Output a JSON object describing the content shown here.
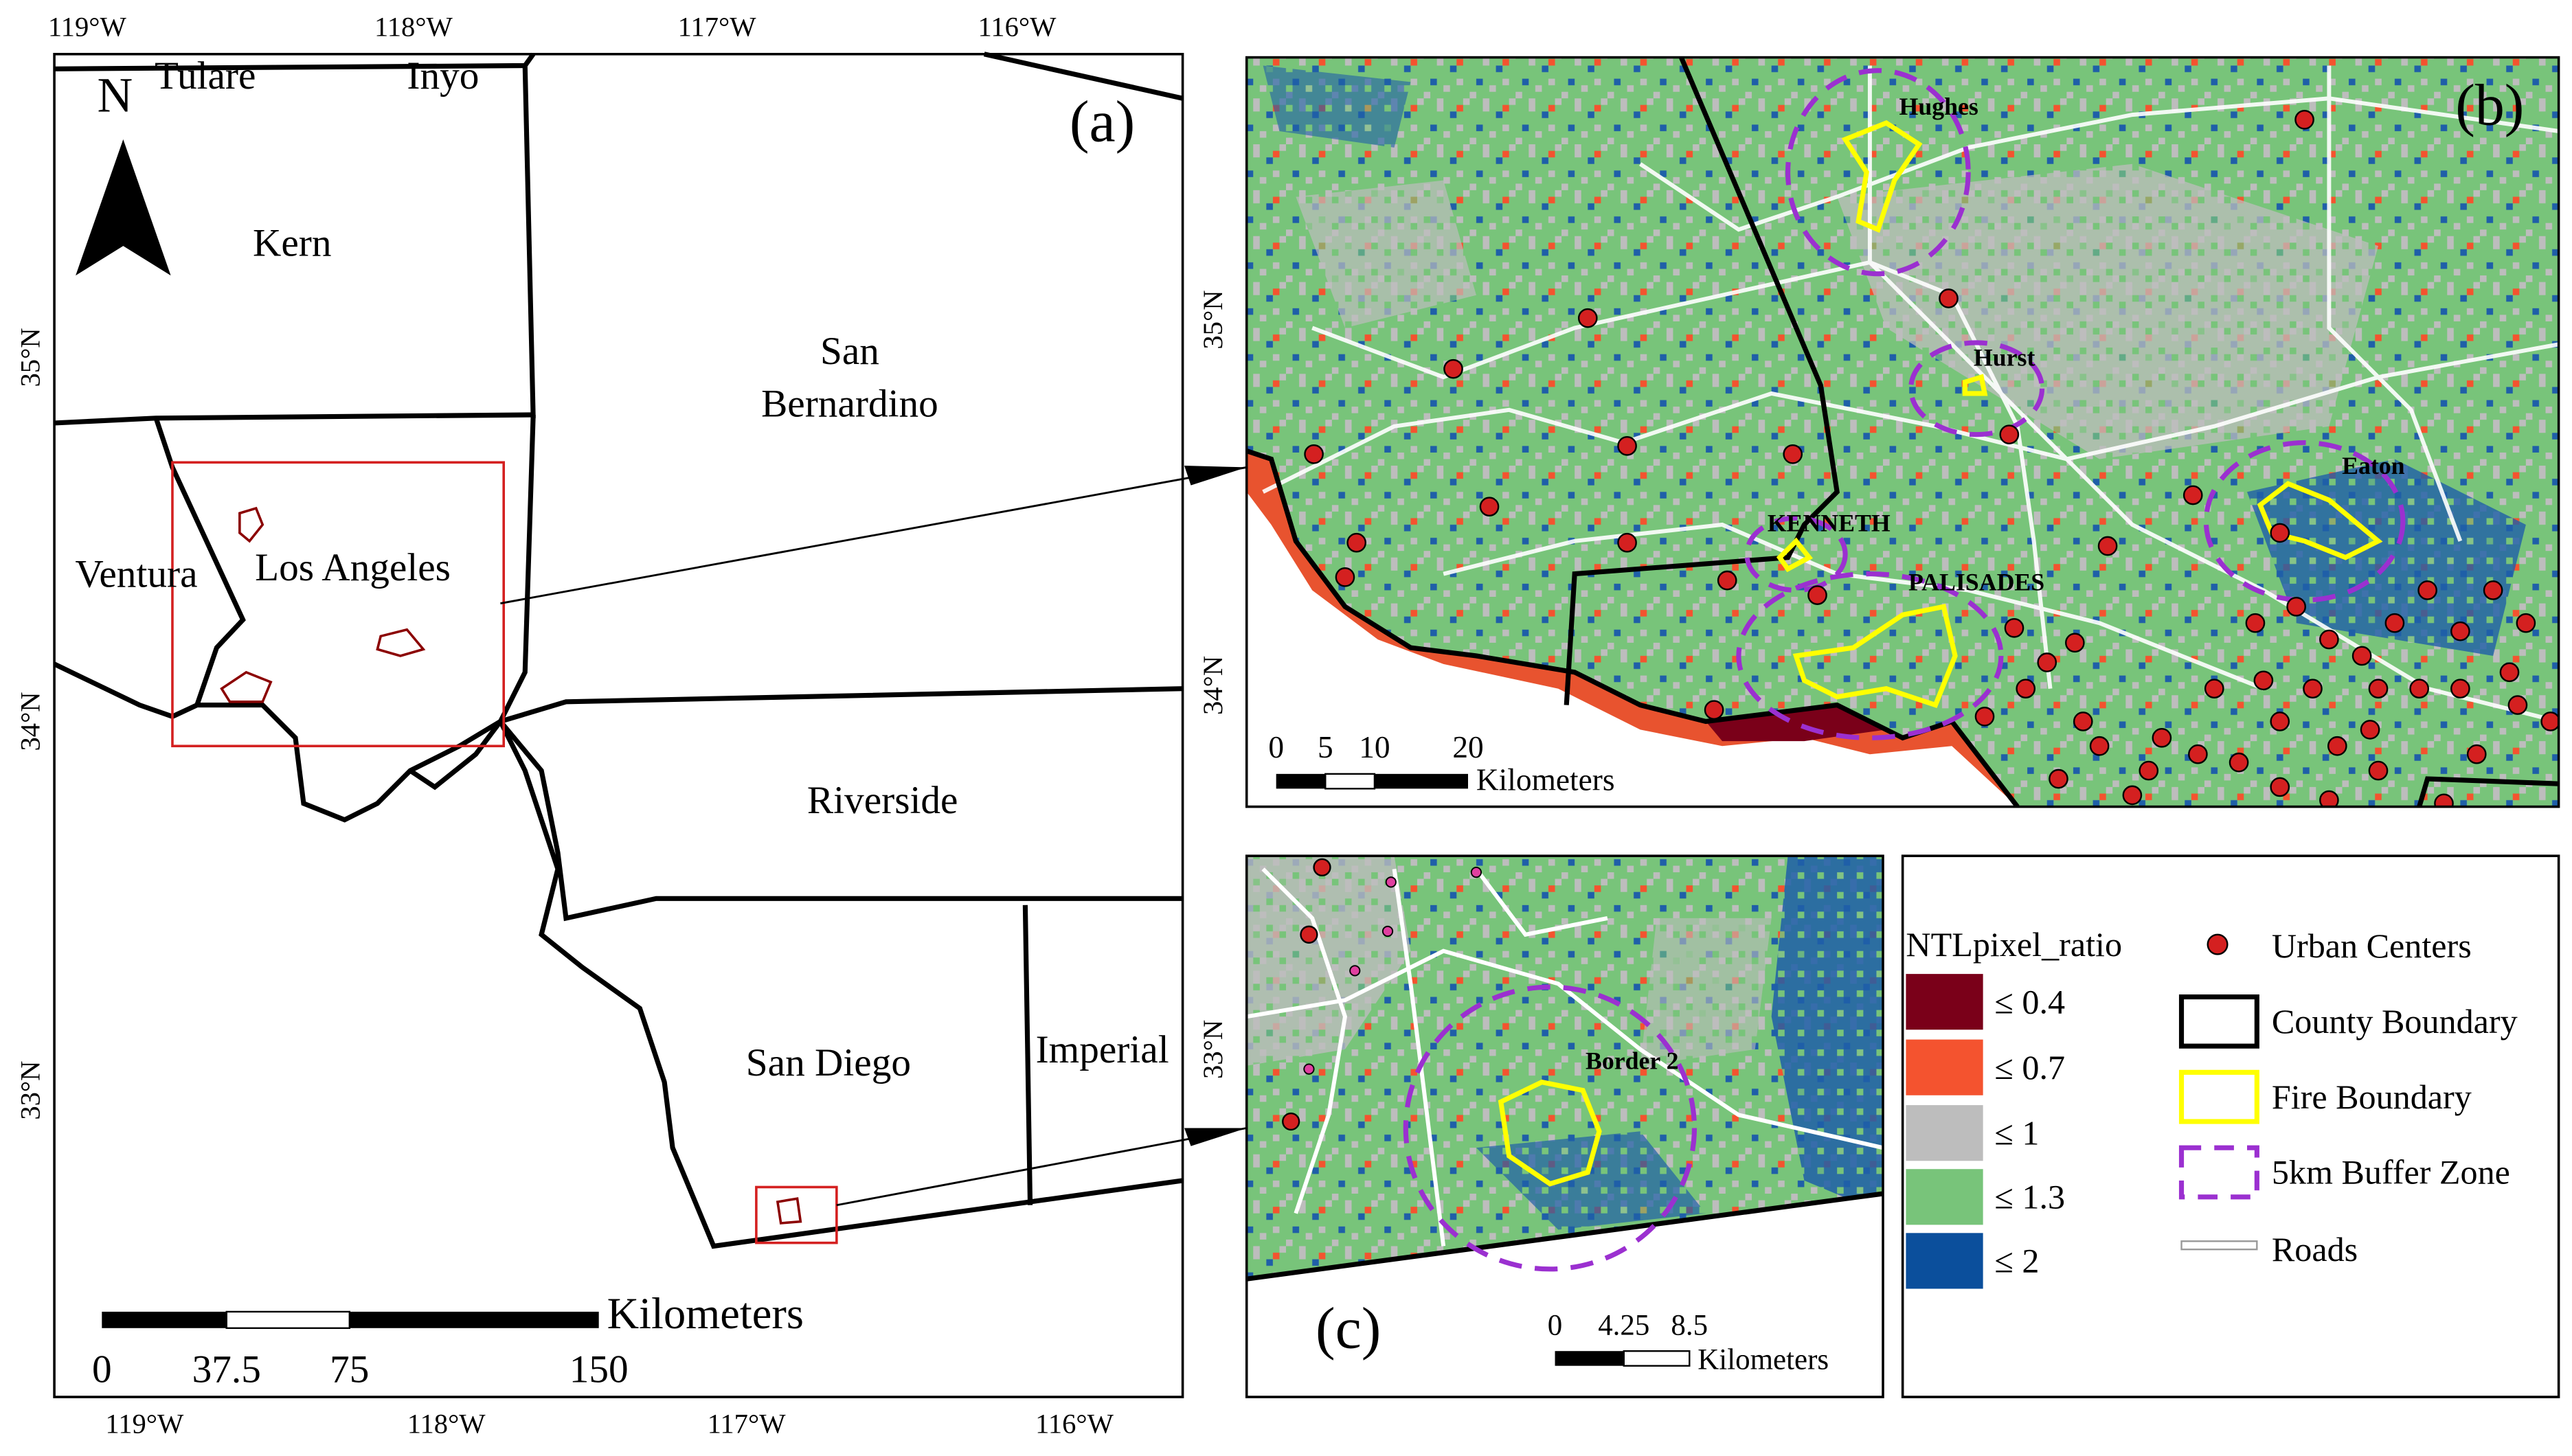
{
  "panel_a": {
    "label": "(a)",
    "north": "N",
    "lon_top": [
      "119°W",
      "118°W",
      "117°W",
      "116°W"
    ],
    "lon_bottom": [
      "119°W",
      "118°W",
      "117°W",
      "116°W"
    ],
    "lat": [
      "35°N",
      "34°N",
      "33°N"
    ],
    "counties": {
      "tulare": "Tulare",
      "inyo": "Inyo",
      "kern": "Kern",
      "san_bernardino_1": "San",
      "san_bernardino_2": "Bernardino",
      "ventura": "Ventura",
      "los_angeles": "Los Angeles",
      "riverside": "Riverside",
      "san_diego": "San Diego",
      "imperial": "Imperial"
    },
    "scale": {
      "unit": "Kilometers",
      "labels": [
        "0",
        "37.5",
        "75",
        "150"
      ]
    }
  },
  "panel_b": {
    "label": "(b)",
    "lat": [
      "35°N",
      "34°N"
    ],
    "fires": {
      "hughes": "Hughes",
      "hurst": "Hurst",
      "eaton": "Eaton",
      "kenneth": "KENNETH",
      "palisades": "PALISADES"
    },
    "scale": {
      "unit": "Kilometers",
      "labels": [
        "0",
        "5",
        "10",
        "20"
      ]
    }
  },
  "panel_c": {
    "label": "(c)",
    "lat": [
      "33°N"
    ],
    "fires": {
      "border2": "Border 2"
    },
    "scale": {
      "unit": "Kilometers",
      "labels": [
        "0",
        "4.25",
        "8.5"
      ]
    }
  },
  "legend": {
    "title": "NTLpixel_ratio",
    "classes": [
      "≤ 0.4",
      "≤ 0.7",
      "≤ 1",
      "≤ 1.3",
      "≤ 2"
    ],
    "symbols": [
      "Urban Centers",
      "County Boundary",
      "Fire Boundary",
      "5km Buffer Zone",
      "Roads"
    ]
  }
}
